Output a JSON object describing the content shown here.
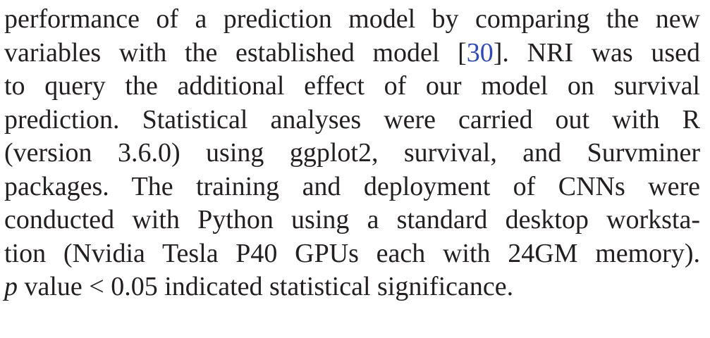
{
  "paragraph": {
    "line1": "performance of a prediction model by comparing the new",
    "line2_before": "variables with the established model [",
    "line2_citation": "30",
    "line2_after": "]. NRI was used",
    "line3": "to query the additional effect of our model on survival",
    "line4": "prediction. Statistical analyses were carried out with R",
    "line5": "(version 3.6.0) using ggplot2, survival, and Survminer",
    "line6": "packages. The training and deployment of CNNs were",
    "line7": "conducted with Python using a standard desktop worksta-",
    "line8": "tion (Nvidia Tesla P40 GPUs each with 24GM memory).",
    "line9_variable": "p",
    "line9_rest": " value < 0.05 indicated statistical significance."
  },
  "colors": {
    "text": "#231f20",
    "citation_link": "#2f4ab5",
    "background": "#ffffff"
  }
}
